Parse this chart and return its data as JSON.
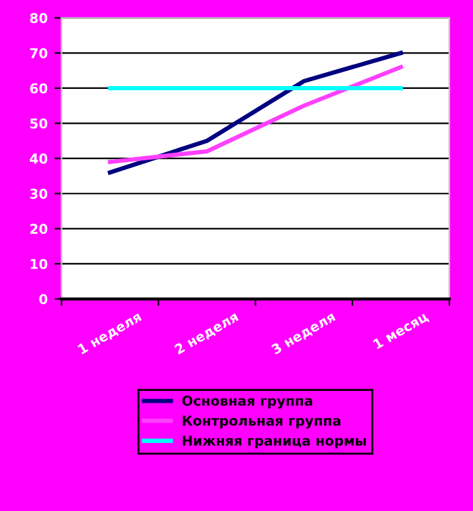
{
  "chart_data": {
    "type": "line",
    "categories": [
      "1 неделя",
      "2 неделя",
      "3 неделя",
      "1 месяц"
    ],
    "series": [
      {
        "name": "Основная группа",
        "color": "#000080",
        "values": [
          36,
          45,
          62,
          70
        ]
      },
      {
        "name": "Контрольная группа",
        "color": "#ff40ff",
        "values": [
          39,
          42,
          55,
          66
        ]
      },
      {
        "name": "Нижняя граница нормы",
        "color": "#00ffff",
        "values": [
          60,
          60,
          60,
          60
        ]
      }
    ],
    "ylim": [
      0,
      80
    ],
    "yticks": [
      0,
      10,
      20,
      30,
      40,
      50,
      60,
      70,
      80
    ],
    "grid": "y",
    "legend": "bottom",
    "marker": "none",
    "line_style": "solid"
  }
}
